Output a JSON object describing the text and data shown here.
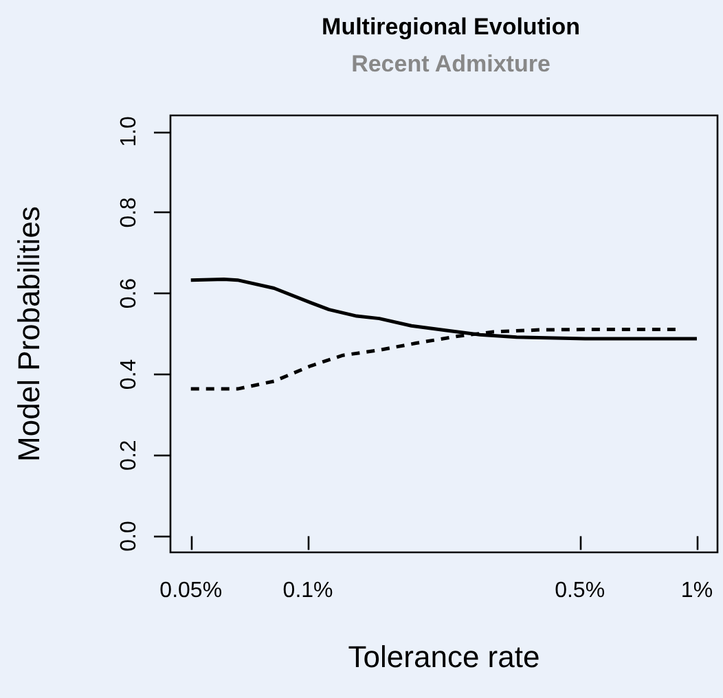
{
  "chart_data": {
    "type": "line",
    "title": "Multiregional Evolution",
    "subtitle": "Recent Admixture",
    "xlabel": "Tolerance rate",
    "ylabel": "Model Probabilities",
    "log": "x",
    "xlim": [
      0.0443,
      1.13
    ],
    "ylim": [
      -0.04,
      1.04
    ],
    "xticks": [
      {
        "value": 0.05,
        "label": "0.05%"
      },
      {
        "value": 0.1,
        "label": "0.1%"
      },
      {
        "value": 0.5,
        "label": "0.5%"
      },
      {
        "value": 1,
        "label": "1%"
      }
    ],
    "yticks": [
      {
        "value": 0,
        "label": "0.0"
      },
      {
        "value": 0.2,
        "label": "0.2"
      },
      {
        "value": 0.4,
        "label": "0.4"
      },
      {
        "value": 0.6,
        "label": "0.6"
      },
      {
        "value": 0.8,
        "label": "0.8"
      },
      {
        "value": 1,
        "label": "1.0"
      }
    ],
    "grid": false,
    "marker": "none",
    "series": [
      {
        "color": "#000000",
        "line_style": "solid",
        "x": [
          0.05,
          0.0608,
          0.0659,
          0.0818,
          0.1017,
          0.1133,
          0.1334,
          0.1525,
          0.1845,
          0.229,
          0.277,
          0.344,
          0.516,
          1
        ],
        "values": [
          0.633,
          0.635,
          0.633,
          0.613,
          0.577,
          0.56,
          0.544,
          0.538,
          0.52,
          0.508,
          0.498,
          0.492,
          0.488,
          0.488
        ]
      },
      {
        "color": "#000000",
        "line_style": "dashed",
        "x": [
          0.05,
          0.0659,
          0.0818,
          0.1017,
          0.123,
          0.1525,
          0.1895,
          0.242,
          0.3,
          0.394,
          0.516,
          0.888
        ],
        "values": [
          0.364,
          0.364,
          0.383,
          0.421,
          0.447,
          0.46,
          0.477,
          0.494,
          0.505,
          0.51,
          0.511,
          0.511
        ]
      }
    ]
  }
}
